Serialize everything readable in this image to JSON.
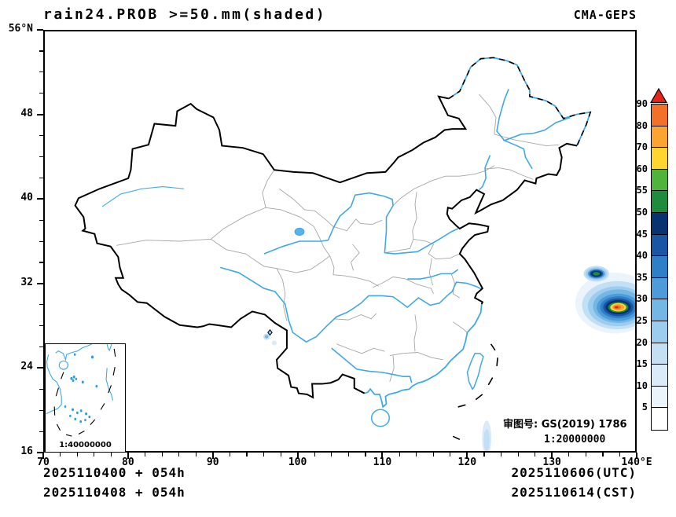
{
  "header": {
    "title": "rain24.PROB >=50.mm(shaded)",
    "model": "CMA-GEPS"
  },
  "axes": {
    "lat_labels": [
      "56°N",
      "48",
      "40",
      "32",
      "24",
      "16"
    ],
    "lon_labels": [
      "70",
      "80",
      "90",
      "100",
      "110",
      "120",
      "130",
      "140°E"
    ]
  },
  "colorbar": {
    "labels": [
      "90",
      "80",
      "70",
      "60",
      "55",
      "50",
      "45",
      "40",
      "35",
      "30",
      "25",
      "20",
      "15",
      "10",
      "5"
    ],
    "colors": [
      "#E8231A",
      "#F3702A",
      "#FBA432",
      "#FFD52F",
      "#50B43C",
      "#1E8C3C",
      "#083270",
      "#1A55A5",
      "#2E7EC8",
      "#4D9BD8",
      "#74B6E4",
      "#9CCDEE",
      "#C2DFF4",
      "#DAEAF8",
      "#ECF4FB",
      "#FFFFFF"
    ]
  },
  "inset": {
    "scale_label": "1:40000000"
  },
  "map_overlay": {
    "approval_no": "审图号: GS(2019) 1786",
    "scale": "1:20000000"
  },
  "footer": {
    "left_line1": "2025110400 + 054h",
    "left_line2": "2025110408 + 054h",
    "right_line1": "2025110606(UTC)",
    "right_line2": "2025110614(CST)"
  }
}
